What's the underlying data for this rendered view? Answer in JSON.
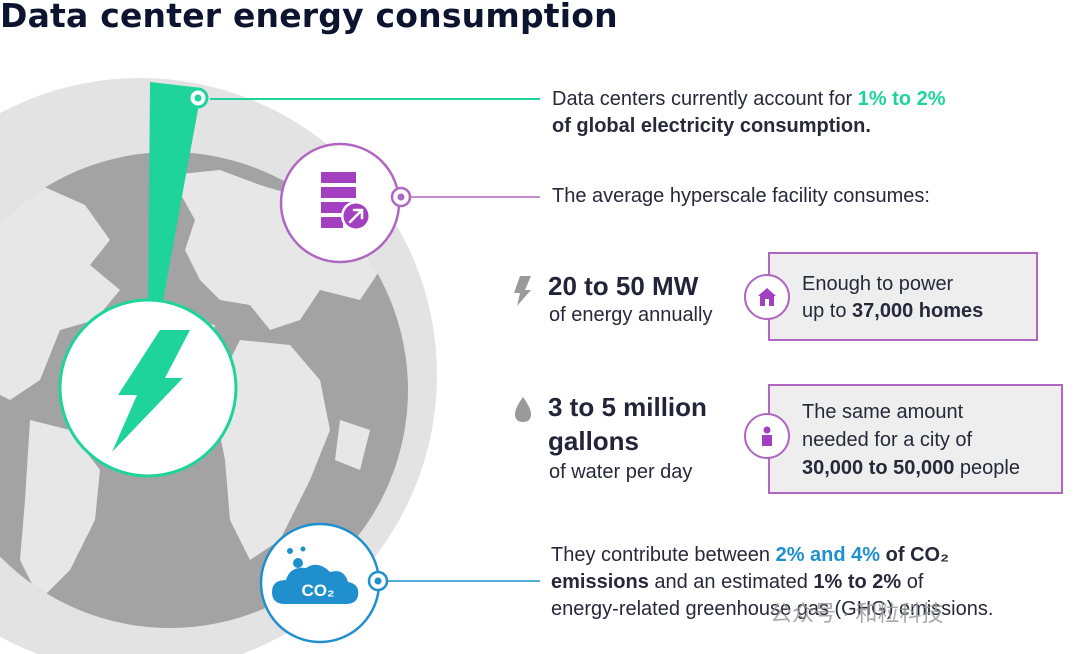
{
  "title": "Data center energy consumption",
  "facts": {
    "electricity_pre": "Data centers currently account for ",
    "electricity_pct": "1% to 2%",
    "electricity_post": "of global electricity consumption.",
    "hyperscale": "The average hyperscale facility consumes:",
    "energy_value": "20 to 50 MW",
    "energy_unit": "of energy annually",
    "energy_box_line1": "Enough to power",
    "energy_box_pre": "up to ",
    "energy_box_value": "37,000 homes",
    "water_value_line1": "3 to 5 million",
    "water_value_line2": "gallons",
    "water_unit": "of water per day",
    "water_box_line1": "The same amount",
    "water_box_line2": "needed for a city of",
    "water_box_value": "30,000 to 50,000",
    "water_box_post": " people",
    "co2_pre": "They contribute between ",
    "co2_pct": "2% and 4%",
    "co2_mid": " of CO₂",
    "co2_line2_a": "emissions",
    "co2_line2_b": " and an estimated ",
    "co2_line2_pct": "1% to 2%",
    "co2_line2_c": " of",
    "co2_line3": "energy-related greenhouse gas (GHG) emissions."
  },
  "icons": {
    "co2_label": "CO₂"
  },
  "watermark": "公众号 · 和粒科技",
  "colors": {
    "green": "#1ed49b",
    "purple": "#b067c2",
    "blue": "#1f8fce",
    "globe_light": "#dadada",
    "globe_dark": "#9a9a9a"
  }
}
